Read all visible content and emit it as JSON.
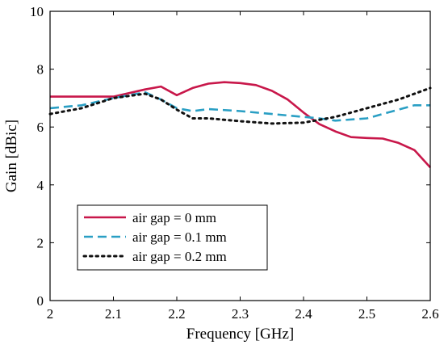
{
  "chart_data": {
    "type": "line",
    "xlabel": "Frequency [GHz]",
    "ylabel": "Gain [dBic]",
    "xlim": [
      2,
      2.6
    ],
    "ylim": [
      0,
      10
    ],
    "xticks": [
      "2",
      "2.1",
      "2.2",
      "2.3",
      "2.4",
      "2.5",
      "2.6"
    ],
    "yticks": [
      "0",
      "2",
      "4",
      "6",
      "8",
      "10"
    ],
    "grid": false,
    "legend_position": "bottom-left",
    "series": [
      {
        "name": "air gap = 0 mm",
        "color": "#c8174a",
        "style": "solid",
        "x": [
          2.0,
          2.05,
          2.1,
          2.15,
          2.175,
          2.2,
          2.225,
          2.25,
          2.275,
          2.3,
          2.325,
          2.35,
          2.375,
          2.4,
          2.425,
          2.45,
          2.475,
          2.5,
          2.525,
          2.55,
          2.575,
          2.6
        ],
        "y": [
          7.05,
          7.05,
          7.05,
          7.3,
          7.4,
          7.1,
          7.35,
          7.5,
          7.55,
          7.52,
          7.45,
          7.25,
          6.95,
          6.5,
          6.1,
          5.85,
          5.65,
          5.62,
          5.6,
          5.45,
          5.2,
          4.6
        ]
      },
      {
        "name": "air gap = 0.1 mm",
        "color": "#2a9fc4",
        "style": "dashed",
        "x": [
          2.0,
          2.05,
          2.1,
          2.15,
          2.175,
          2.2,
          2.225,
          2.25,
          2.3,
          2.35,
          2.4,
          2.425,
          2.45,
          2.5,
          2.55,
          2.575,
          2.6
        ],
        "y": [
          6.65,
          6.75,
          7.0,
          7.2,
          6.95,
          6.65,
          6.55,
          6.62,
          6.55,
          6.45,
          6.35,
          6.3,
          6.22,
          6.3,
          6.6,
          6.75,
          6.75
        ]
      },
      {
        "name": "air gap = 0.2 mm",
        "color": "#111111",
        "style": "dotted",
        "x": [
          2.0,
          2.05,
          2.1,
          2.15,
          2.175,
          2.2,
          2.225,
          2.25,
          2.3,
          2.35,
          2.4,
          2.45,
          2.5,
          2.55,
          2.6
        ],
        "y": [
          6.45,
          6.65,
          7.0,
          7.15,
          6.95,
          6.6,
          6.3,
          6.3,
          6.2,
          6.12,
          6.15,
          6.35,
          6.65,
          6.95,
          7.35
        ]
      }
    ]
  }
}
